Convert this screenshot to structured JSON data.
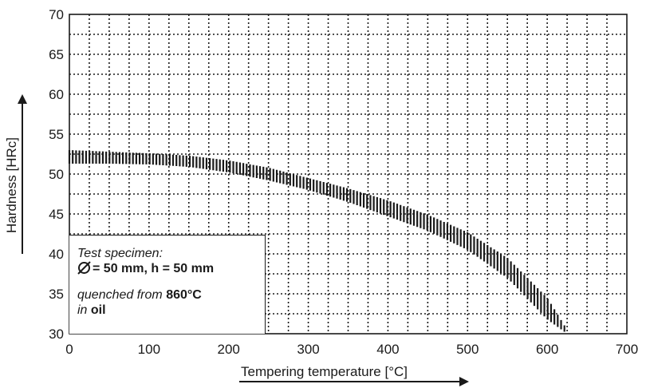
{
  "chart_data": {
    "type": "area",
    "title": "",
    "xlabel": "Tempering temperature [°C]",
    "ylabel": "Hardness [HRc]",
    "xlim": [
      0,
      700
    ],
    "ylim": [
      30,
      70
    ],
    "xticks": [
      0,
      100,
      200,
      300,
      400,
      500,
      600,
      700
    ],
    "yticks": [
      30,
      35,
      40,
      45,
      50,
      55,
      60,
      65,
      70
    ],
    "grid": true,
    "series": [
      {
        "x": [
          0,
          50,
          100,
          150,
          200,
          250,
          300,
          350,
          400,
          450,
          500,
          550,
          600,
          625
        ],
        "upper": [
          53.0,
          52.8,
          52.6,
          52.3,
          51.7,
          50.8,
          49.5,
          48.2,
          46.7,
          44.9,
          42.7,
          39.5,
          34.5,
          30.5
        ],
        "lower": [
          51.3,
          51.3,
          51.2,
          50.9,
          50.2,
          49.2,
          48.0,
          46.5,
          44.7,
          42.9,
          40.5,
          37.0,
          31.8,
          30.0
        ]
      }
    ]
  },
  "legend_box": {
    "line1": "Test specimen:",
    "line2": "= 50 mm, h = 50 mm",
    "line3_prefix": "quenched from ",
    "line3_value": "860°C",
    "line4_prefix": "in ",
    "line4_value": "oil"
  },
  "colors": {
    "ink": "#1a1a1a",
    "background": "#ffffff"
  }
}
